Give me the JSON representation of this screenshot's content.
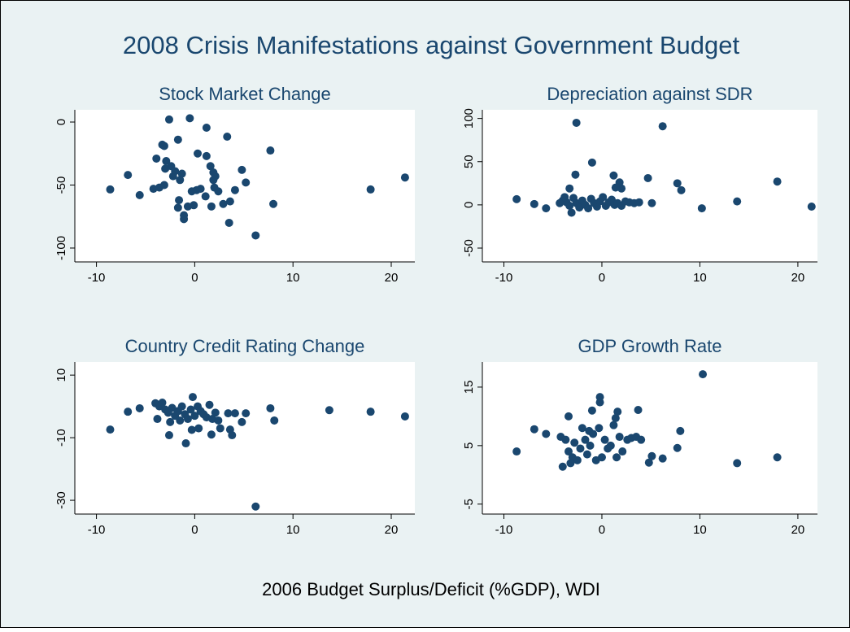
{
  "title": "2008 Crisis Manifestations against Government Budget",
  "xlabel": "2006 Budget Surplus/Deficit (%GDP), WDI",
  "chart_data": [
    {
      "type": "scatter",
      "title": "Stock Market Change",
      "color": "#1a476f",
      "x": [
        -8.6,
        -6.8,
        -5.6,
        -2.6,
        -0.5,
        1.2,
        3.3,
        7.7,
        8.0,
        17.9,
        21.4,
        6.2,
        3.5,
        -1.1,
        -1.1,
        -1.7,
        -3.1,
        -3.3,
        -3.9,
        -2.9,
        -2.4,
        -3.0,
        -2.0,
        -1.3,
        -2.2,
        -1.5,
        -4.2,
        -3.6,
        -3.1,
        -1.6,
        -1.7,
        -0.7,
        -0.1,
        -0.3,
        0.2,
        0.6,
        0.3,
        1.2,
        1.6,
        1.9,
        1.9,
        2.0,
        2.4,
        2.9,
        3.6,
        4.1,
        4.8,
        5.2,
        1.7,
        1.1,
        2.1
      ],
      "values": [
        -53.5,
        -42,
        -58,
        2,
        3,
        -4.5,
        -11.6,
        -22.6,
        -65,
        -53.5,
        -44,
        -90,
        -80,
        -77,
        -74,
        -14,
        -19,
        -18,
        -29,
        -31,
        -35,
        -37,
        -39,
        -41,
        -43,
        -46,
        -53,
        -52,
        -50,
        -62,
        -68,
        -67,
        -66,
        -55,
        -54,
        -53,
        -25,
        -27,
        -35,
        -40,
        -46,
        -52,
        -55,
        -65,
        -63,
        -54,
        -38,
        -48,
        -67,
        -59,
        -43
      ],
      "xlim": [
        -12.2,
        22.4
      ],
      "ylim": [
        -111,
        9.7
      ],
      "xticks": [
        -10,
        0,
        10,
        20
      ],
      "yticks": [
        -100,
        -50,
        0
      ]
    },
    {
      "type": "scatter",
      "title": "Depreciation against SDR",
      "color": "#1a476f",
      "x": [
        -8.7,
        -6.9,
        -5.7,
        -2.6,
        6.2,
        -1.0,
        -2.7,
        -3.3,
        1.2,
        1.8,
        2.0,
        1.4,
        4.7,
        7.7,
        8.1,
        17.9,
        21.4,
        10.2,
        13.8,
        5.1,
        -4,
        -3.6,
        -3.3,
        -3.1,
        -2.9,
        -2.6,
        -2.3,
        -2,
        -1.7,
        -1.4,
        -1.1,
        -0.8,
        -0.5,
        -0.2,
        0.1,
        0.4,
        0.7,
        1,
        1.3,
        1.6,
        2,
        2.4,
        2.8,
        3.3,
        3.8,
        -4.3,
        -3.8
      ],
      "values": [
        6.6,
        1,
        -4,
        95,
        91,
        49,
        35,
        19,
        34,
        26,
        19,
        20,
        31,
        25,
        17,
        27,
        -2,
        -4,
        4,
        2,
        5,
        3,
        -1,
        -9,
        8,
        2,
        -3,
        5,
        0,
        -4,
        7,
        2,
        -2,
        4,
        9,
        -1,
        3,
        6,
        0,
        2,
        -1,
        4,
        3,
        2,
        3,
        2,
        9
      ],
      "xlim": [
        -12.2,
        22.0
      ],
      "ylim": [
        -66,
        110
      ],
      "xticks": [
        -10,
        0,
        10,
        20
      ],
      "yticks": [
        -50,
        0,
        50,
        100
      ]
    },
    {
      "type": "scatter",
      "title": "Country Credit Rating Change",
      "color": "#1a476f",
      "x": [
        -8.6,
        -6.8,
        -5.6,
        6.2,
        7.7,
        8.1,
        13.7,
        17.9,
        21.4,
        -0.9,
        -2.6,
        -0.2,
        1.7,
        3.6,
        3.8,
        4.8,
        5.2,
        4.1,
        3.4,
        -4,
        -3.6,
        -3.3,
        -3,
        -2.7,
        -2.3,
        -2,
        -1.7,
        -1.3,
        -1,
        -0.7,
        -0.4,
        0,
        0.3,
        0.6,
        0.9,
        1.2,
        1.5,
        1.8,
        2.1,
        2.4,
        -3.8,
        -2.5,
        -1.5,
        -0.3,
        0.4,
        2.6
      ],
      "values": [
        -7.4,
        -1.7,
        -0.6,
        -32,
        -0.6,
        -4.5,
        -1.2,
        -1.7,
        -3.2,
        -11.8,
        -9.2,
        3,
        -9,
        -7.4,
        -9.2,
        -5,
        -2.2,
        -2.2,
        -2.2,
        1,
        0,
        1.2,
        -1,
        -2,
        -0.5,
        -3,
        -1.5,
        0,
        -2.5,
        -4,
        -1,
        -3,
        0,
        -1.5,
        -2.5,
        -3.5,
        0.5,
        -4,
        -2,
        -4.5,
        -4,
        -5,
        -4.5,
        -7.5,
        -7,
        -7
      ],
      "xlim": [
        -12.2,
        22.4
      ],
      "ylim": [
        -34.4,
        14.2
      ],
      "xticks": [
        -10,
        0,
        10,
        20
      ],
      "yticks": [
        -30,
        -10,
        10
      ]
    },
    {
      "type": "scatter",
      "title": "GDP Growth Rate",
      "color": "#1a476f",
      "x": [
        -8.7,
        -6.9,
        -5.7,
        10.3,
        13.8,
        17.9,
        -0.2,
        -0.2,
        -3.4,
        -1.0,
        1.6,
        1.4,
        3.7,
        8.0,
        7.7,
        5.1,
        4.8,
        6.2,
        -4.0,
        -4.2,
        -3.7,
        -3.4,
        -3,
        -2.8,
        -2.5,
        -2.2,
        -2,
        -1.7,
        -1.5,
        -1.2,
        -0.9,
        -0.6,
        -0.3,
        0,
        0.3,
        0.6,
        0.9,
        1.2,
        1.5,
        1.8,
        2.1,
        2.6,
        3,
        3.5,
        4,
        -3.2,
        -1.3
      ],
      "values": [
        4,
        7.8,
        7,
        17.2,
        2,
        3,
        13.3,
        12.4,
        10,
        11,
        10.8,
        9.7,
        11.1,
        7.5,
        4.6,
        3.2,
        2.1,
        2.8,
        1.4,
        6.5,
        6,
        4,
        3,
        5.5,
        2.5,
        4.5,
        8,
        6,
        3.5,
        5,
        7,
        2.5,
        8,
        3,
        6,
        4.5,
        5,
        8.5,
        3,
        6.5,
        4,
        6,
        6.3,
        6.5,
        6,
        2,
        7.5
      ],
      "xlim": [
        -12.2,
        22.0
      ],
      "ylim": [
        -6.7,
        19.3
      ],
      "xticks": [
        -10,
        0,
        10,
        20
      ],
      "yticks": [
        -5,
        5,
        15
      ]
    }
  ]
}
